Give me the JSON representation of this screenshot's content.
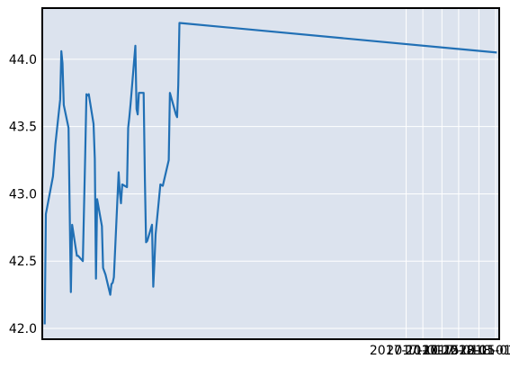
{
  "chart_data": {
    "type": "line",
    "title": "",
    "xlabel": "",
    "ylabel": "",
    "x_ticks": [
      "2017-11-01",
      "2017-11-15",
      "2017-12-01",
      "2017-12-15",
      "2018-01-01",
      "2018-01-15"
    ],
    "y_ticks": [
      "42.0",
      "42.5",
      "43.0",
      "43.5",
      "44.0"
    ],
    "x_range": [
      "2016-12-31",
      "2018-01-18"
    ],
    "ylim": [
      41.92,
      44.38
    ],
    "grid": true,
    "colors": {
      "background": "#dce3ee",
      "grid": "#ffffff",
      "line": "#2170b5",
      "frame": "#000000"
    },
    "series": [
      {
        "x": [
          "2017-01-02",
          "2017-01-03",
          "2017-01-09",
          "2017-01-10",
          "2017-01-11",
          "2017-01-15",
          "2017-01-16",
          "2017-01-17",
          "2017-01-18",
          "2017-01-22",
          "2017-01-23",
          "2017-01-24",
          "2017-01-25",
          "2017-01-29",
          "2017-01-30",
          "2017-01-31",
          "2017-02-01",
          "2017-02-03",
          "2017-02-05",
          "2017-02-06",
          "2017-02-07",
          "2017-02-08",
          "2017-02-12",
          "2017-02-13",
          "2017-02-14",
          "2017-02-15",
          "2017-02-19",
          "2017-02-20",
          "2017-02-22",
          "2017-02-26",
          "2017-02-27",
          "2017-02-28",
          "2017-03-01",
          "2017-03-05",
          "2017-03-06",
          "2017-03-07",
          "2017-03-08",
          "2017-03-12",
          "2017-03-13",
          "2017-03-14",
          "2017-03-15",
          "2017-03-19",
          "2017-03-20",
          "2017-03-21",
          "2017-03-22",
          "2017-03-26",
          "2017-03-27",
          "2017-03-28",
          "2017-03-29",
          "2017-04-02",
          "2017-04-03",
          "2017-04-04",
          "2017-04-05",
          "2017-04-09",
          "2017-04-11",
          "2017-04-16",
          "2017-04-17",
          "2017-04-22",
          "2017-04-23",
          "2017-04-24",
          "2017-04-25"
        ],
        "values": [
          42.03,
          42.85,
          43.13,
          43.25,
          43.37,
          43.7,
          44.06,
          43.97,
          43.66,
          43.49,
          42.86,
          42.27,
          42.77,
          42.54,
          42.54,
          42.53,
          42.52,
          42.5,
          43.28,
          43.74,
          43.73,
          43.74,
          43.52,
          43.26,
          42.37,
          42.96,
          42.76,
          42.45,
          42.4,
          42.25,
          42.33,
          42.34,
          42.38,
          43.16,
          43.01,
          42.93,
          43.07,
          43.05,
          43.49,
          43.57,
          43.67,
          44.1,
          43.63,
          43.59,
          43.75,
          43.75,
          43.1,
          42.64,
          42.65,
          42.77,
          42.31,
          42.49,
          42.7,
          43.07,
          43.06,
          43.25,
          43.75,
          43.59,
          43.57,
          43.81,
          44.27
        ],
        "tail": {
          "x": "2018-01-16",
          "value": 44.05
        }
      }
    ]
  }
}
